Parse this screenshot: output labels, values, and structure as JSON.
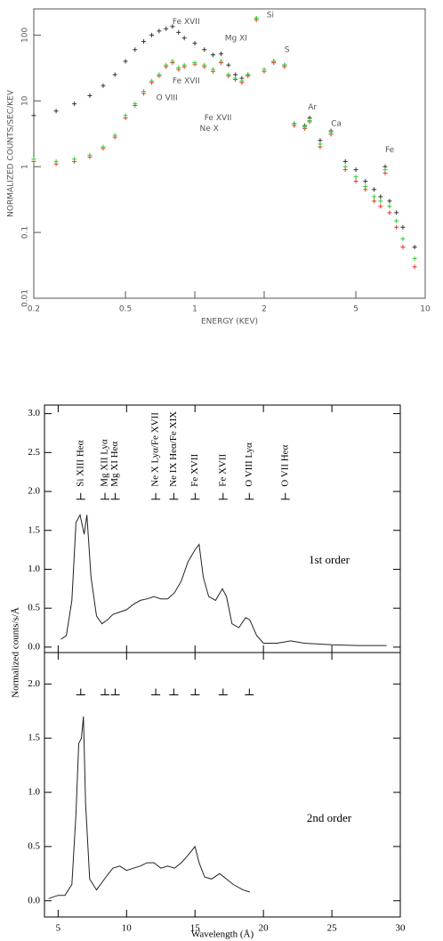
{
  "chart_data": [
    {
      "type": "scatter",
      "xlabel": "ENERGY (KEV)",
      "ylabel": "NORMALIZED COUNTS/SEC/KEV",
      "xscale": "log",
      "yscale": "log",
      "xlim": [
        0.2,
        10
      ],
      "ylim": [
        0.01,
        250
      ],
      "xticks": [
        0.2,
        0.5,
        1,
        2,
        5,
        10
      ],
      "yticks": [
        0.01,
        0.1,
        1,
        10,
        100
      ],
      "x": [
        0.2,
        0.25,
        0.3,
        0.35,
        0.4,
        0.45,
        0.5,
        0.55,
        0.6,
        0.65,
        0.7,
        0.75,
        0.8,
        0.85,
        0.9,
        1.0,
        1.1,
        1.2,
        1.3,
        1.4,
        1.5,
        1.6,
        1.7,
        1.85,
        2.0,
        2.2,
        2.45,
        2.7,
        3.0,
        3.15,
        3.5,
        3.9,
        4.5,
        5,
        5.5,
        6,
        6.4,
        6.7,
        7,
        7.5,
        8,
        9
      ],
      "series": [
        {
          "name": "black",
          "color": "#333333",
          "values": [
            6,
            7,
            9,
            12,
            17,
            25,
            40,
            60,
            80,
            100,
            115,
            125,
            135,
            110,
            90,
            75,
            60,
            50,
            52,
            35,
            25,
            22,
            25,
            180,
            30,
            40,
            35,
            4.5,
            4.2,
            5.5,
            2.5,
            3.5,
            1.2,
            0.9,
            0.6,
            0.45,
            0.35,
            1.0,
            0.3,
            0.2,
            0.12,
            0.06
          ]
        },
        {
          "name": "red",
          "color": "#ee3333",
          "values": [
            1.2,
            1.1,
            1.2,
            1.4,
            1.9,
            2.8,
            5.5,
            8.5,
            13,
            19,
            24,
            33,
            38,
            30,
            33,
            36,
            33,
            28,
            38,
            24,
            21,
            19,
            24,
            170,
            28,
            38,
            33,
            4.2,
            3.8,
            4.8,
            2.0,
            3.1,
            0.9,
            0.6,
            0.45,
            0.3,
            0.25,
            0.8,
            0.2,
            0.12,
            0.06,
            0.03
          ]
        },
        {
          "name": "green",
          "color": "#33cc33",
          "values": [
            1.3,
            1.2,
            1.3,
            1.5,
            2,
            3,
            6,
            9,
            14,
            20,
            25,
            35,
            40,
            32,
            35,
            38,
            35,
            30,
            40,
            25,
            22,
            20,
            25,
            180,
            30,
            40,
            35,
            4.5,
            4,
            5,
            2.2,
            3.3,
            1.0,
            0.7,
            0.5,
            0.35,
            0.3,
            0.9,
            0.25,
            0.15,
            0.08,
            0.04
          ]
        }
      ],
      "annotations": [
        {
          "label": "Fe XVII",
          "x": 0.8,
          "y": 160
        },
        {
          "label": "Mg XI",
          "x": 1.35,
          "y": 90
        },
        {
          "label": "Si",
          "x": 2.05,
          "y": 200
        },
        {
          "label": "S",
          "x": 2.45,
          "y": 60
        },
        {
          "label": "Ar",
          "x": 3.1,
          "y": 8
        },
        {
          "label": "Ca",
          "x": 3.9,
          "y": 4.5
        },
        {
          "label": "Fe",
          "x": 6.7,
          "y": 1.8
        },
        {
          "label": "Fe XVII",
          "x": 0.8,
          "y": 20
        },
        {
          "label": "O VIII",
          "x": 0.68,
          "y": 11
        },
        {
          "label": "Fe XVII",
          "x": 1.1,
          "y": 5.5
        },
        {
          "label": "Ne X",
          "x": 1.05,
          "y": 3.8
        }
      ]
    },
    {
      "type": "line",
      "text": "1st order",
      "xlim": [
        4,
        30
      ],
      "ylim": [
        -0.07,
        3.11
      ],
      "yticks": [
        {
          "value": 0,
          "label": "0.0"
        },
        0.5,
        {
          "value": 1,
          "label": "1.0"
        },
        1.5,
        {
          "value": 2,
          "label": "2.0"
        },
        2.5,
        {
          "value": 3,
          "label": "3.0"
        }
      ],
      "x": [
        5.2,
        5.6,
        6.0,
        6.3,
        6.6,
        6.9,
        7.1,
        7.4,
        7.8,
        8.2,
        8.6,
        9.0,
        9.5,
        10,
        10.5,
        11,
        11.5,
        12,
        12.5,
        13,
        13.5,
        14,
        14.5,
        15,
        15.3,
        15.6,
        16,
        16.5,
        17,
        17.3,
        17.7,
        18.2,
        18.7,
        19,
        19.5,
        20,
        21,
        22,
        23,
        25,
        27,
        29
      ],
      "values": [
        0.1,
        0.15,
        0.6,
        1.6,
        1.7,
        1.45,
        1.7,
        0.9,
        0.4,
        0.3,
        0.35,
        0.42,
        0.45,
        0.48,
        0.55,
        0.6,
        0.62,
        0.65,
        0.62,
        0.62,
        0.7,
        0.85,
        1.1,
        1.25,
        1.32,
        0.9,
        0.65,
        0.6,
        0.75,
        0.65,
        0.3,
        0.25,
        0.38,
        0.35,
        0.15,
        0.05,
        0.05,
        0.08,
        0.05,
        0.03,
        0.02,
        0.02
      ],
      "marker_y": 1.9,
      "line_labels": [
        {
          "label": "Si XIII Heα",
          "x": 6.65
        },
        {
          "label": "Mg XII Lyα",
          "x": 8.42
        },
        {
          "label": "Mg XI Heα",
          "x": 9.17
        },
        {
          "label": "Ne X Lyα/Fe XVII",
          "x": 12.13
        },
        {
          "label": "Ne IX Heα/Fe XIX",
          "x": 13.45
        },
        {
          "label": "Fe XVII",
          "x": 15.01
        },
        {
          "label": "Fe XVII",
          "x": 17.05
        },
        {
          "label": "O VIII Lyα",
          "x": 18.97
        },
        {
          "label": "O VII Heα",
          "x": 21.6
        }
      ]
    },
    {
      "type": "line",
      "text": "2nd order",
      "xlabel": "Wavelength (Å)",
      "ylabel": "Normalized counts/s/Å",
      "xlim": [
        4,
        30
      ],
      "ylim": [
        -0.15,
        2.29
      ],
      "xticks": [
        5,
        10,
        15,
        20,
        25,
        30
      ],
      "yticks": [
        {
          "value": 0,
          "label": "0.0"
        },
        0.5,
        {
          "value": 1,
          "label": "1.0"
        },
        1.5,
        {
          "value": 2,
          "label": "2.0"
        }
      ],
      "x": [
        4.3,
        5,
        5.5,
        6,
        6.3,
        6.5,
        6.7,
        6.85,
        7.0,
        7.3,
        7.8,
        8.5,
        9,
        9.5,
        10,
        10.5,
        11,
        11.5,
        12,
        12.5,
        13,
        13.5,
        14,
        14.5,
        15,
        15.3,
        15.7,
        16.2,
        16.8,
        17.3,
        17.8,
        18.5,
        19
      ],
      "values": [
        0.02,
        0.05,
        0.05,
        0.15,
        0.8,
        1.45,
        1.5,
        1.7,
        0.9,
        0.2,
        0.1,
        0.22,
        0.3,
        0.32,
        0.28,
        0.3,
        0.32,
        0.35,
        0.35,
        0.3,
        0.32,
        0.3,
        0.35,
        0.42,
        0.5,
        0.35,
        0.22,
        0.2,
        0.25,
        0.2,
        0.15,
        0.1,
        0.08
      ],
      "marker_y": 1.9,
      "line_markers": [
        6.65,
        8.42,
        9.17,
        12.13,
        13.45,
        15.01,
        17.05,
        18.97
      ]
    }
  ]
}
